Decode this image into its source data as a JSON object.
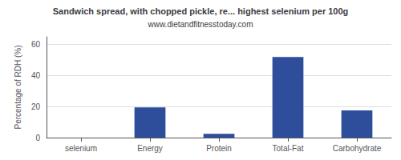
{
  "chart_data": {
    "type": "bar",
    "title": "Sandwich spread, with chopped pickle, re... highest selenium per 100g",
    "subtitle": "www.dietandfitnesstoday.com",
    "categories": [
      "selenium",
      "Energy",
      "Protein",
      "Total-Fat",
      "Carbohydrate"
    ],
    "values": [
      0,
      19.5,
      2.5,
      52,
      17.5
    ],
    "color": "#2e4d9b",
    "ylabel": "Percentage of RDH (%)",
    "ylim": [
      0,
      65
    ],
    "yticks": [
      0,
      20,
      40,
      60
    ],
    "grid": true
  }
}
